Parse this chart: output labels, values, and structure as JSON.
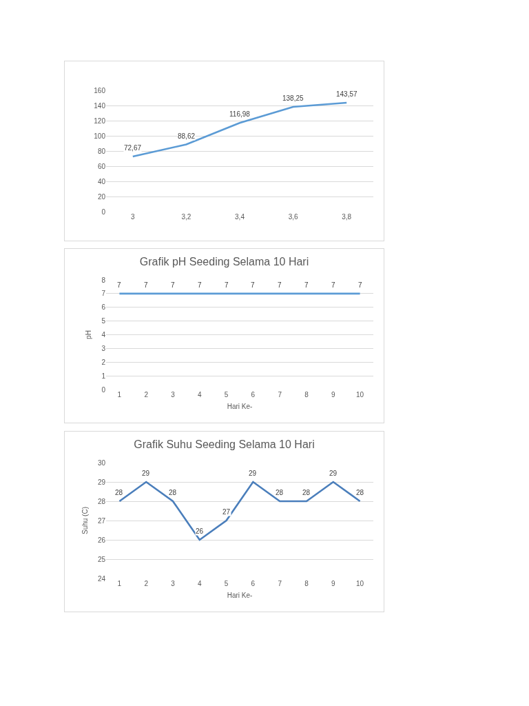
{
  "chart_data": [
    {
      "type": "line",
      "categories": [
        "3",
        "3,2",
        "3,4",
        "3,6",
        "3,8"
      ],
      "values": [
        72.67,
        88.62,
        116.98,
        138.25,
        143.57
      ],
      "value_labels": [
        "72,67",
        "88,62",
        "116,98",
        "138,25",
        "143,57"
      ],
      "color": "#5b9bd5",
      "ylim": [
        0,
        160
      ],
      "yticks": [
        0,
        20,
        40,
        60,
        80,
        100,
        120,
        140,
        160
      ],
      "grid": "y"
    },
    {
      "type": "line",
      "title": "Grafik pH Seeding Selama 10 Hari",
      "xlabel": "Hari Ke-",
      "ylabel": "pH",
      "categories": [
        "1",
        "2",
        "3",
        "4",
        "5",
        "6",
        "7",
        "8",
        "9",
        "10"
      ],
      "values": [
        7,
        7,
        7,
        7,
        7,
        7,
        7,
        7,
        7,
        7
      ],
      "data_labels": true,
      "color": "#5b9bd5",
      "ylim": [
        0,
        8
      ],
      "yticks": [
        0,
        1,
        2,
        3,
        4,
        5,
        6,
        7,
        8
      ],
      "grid": "y"
    },
    {
      "type": "line",
      "title": "Grafik Suhu Seeding Selama 10 Hari",
      "xlabel": "Hari Ke-",
      "ylabel": "Suhu (C)",
      "categories": [
        "1",
        "2",
        "3",
        "4",
        "5",
        "6",
        "7",
        "8",
        "9",
        "10"
      ],
      "values": [
        28,
        29,
        28,
        26,
        27,
        29,
        28,
        28,
        29,
        28
      ],
      "data_labels": true,
      "color": "#4a7ebb",
      "ylim": [
        24,
        30
      ],
      "yticks": [
        24,
        25,
        26,
        27,
        28,
        29,
        30
      ],
      "grid": "y"
    }
  ]
}
